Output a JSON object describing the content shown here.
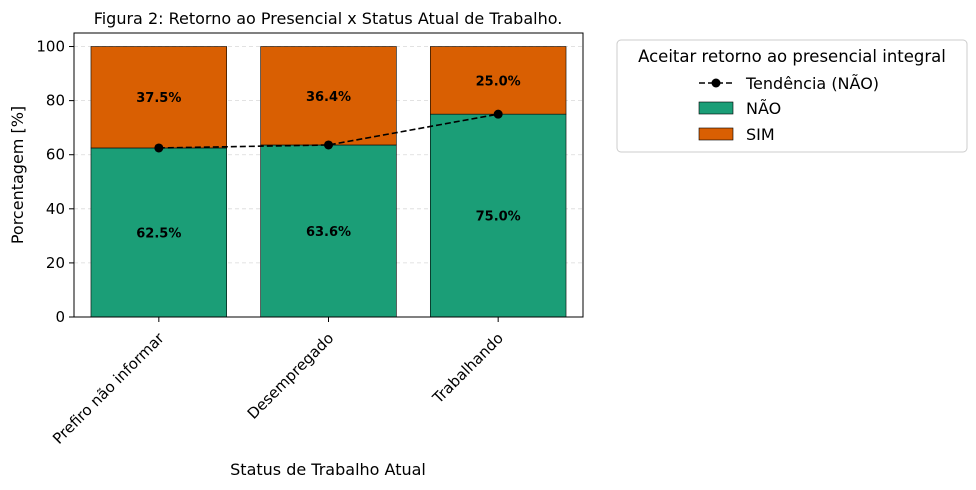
{
  "chart_data": {
    "type": "bar",
    "stacked": true,
    "title": "Figura 2: Retorno ao Presencial x Status Atual de Trabalho.",
    "xlabel": "Status de Trabalho Atual",
    "ylabel": "Porcentagem [%]",
    "ylim": [
      0,
      105
    ],
    "yticks": [
      0,
      20,
      40,
      60,
      80,
      100
    ],
    "grid": "y-dashed",
    "categories": [
      "Prefiro não informar",
      "Desempregado",
      "Trabalhando"
    ],
    "series": [
      {
        "name": "NÃO",
        "values": [
          62.5,
          63.6,
          75.0
        ],
        "labels": [
          "62.5%",
          "63.6%",
          "75.0%"
        ],
        "color": "#1b9e77"
      },
      {
        "name": "SIM",
        "values": [
          37.5,
          36.4,
          25.0
        ],
        "labels": [
          "37.5%",
          "36.4%",
          "25.0%"
        ],
        "color": "#d95f02"
      }
    ],
    "trend": {
      "name": "Tendência (NÃO)",
      "values": [
        62.5,
        63.6,
        75.0
      ],
      "color": "#000000",
      "style": "dashed-with-dots"
    },
    "legend": {
      "title": "Aceitar retorno ao presencial integral",
      "placement": "outside-right-top"
    }
  }
}
